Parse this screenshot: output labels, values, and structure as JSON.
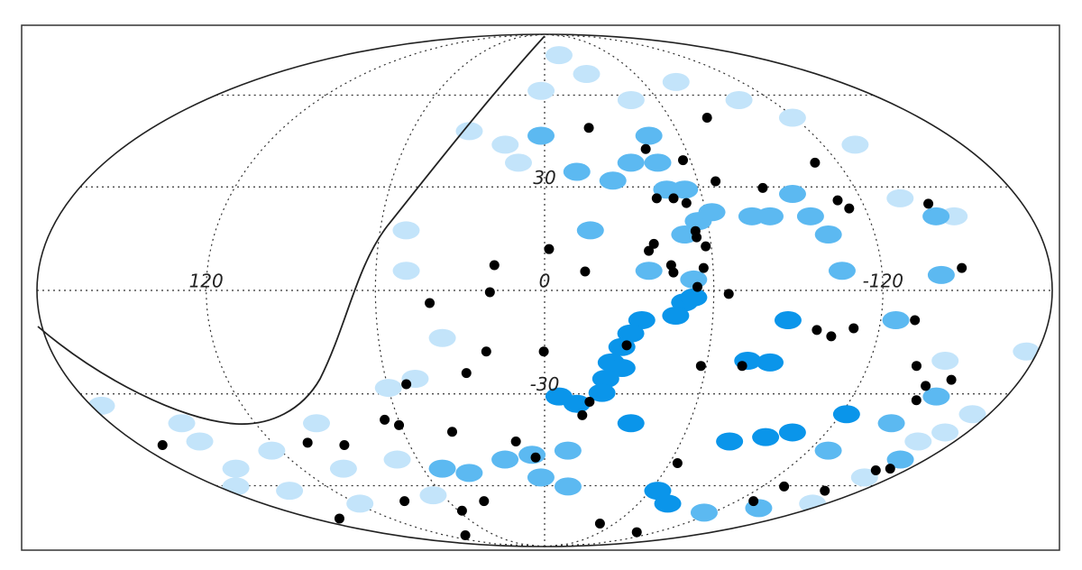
{
  "chart_data": {
    "type": "scatter",
    "projection": "mollweide",
    "xlim": [
      180,
      -180
    ],
    "ylim": [
      -90,
      90
    ],
    "xticks": [
      120,
      0,
      -120
    ],
    "yticks": [
      30,
      -30
    ],
    "xgrid": [
      -120,
      -60,
      0,
      60,
      120
    ],
    "ygrid": [
      -60,
      -30,
      0,
      30,
      60
    ],
    "grid": true,
    "series": [
      {
        "color": "#c3e4fa",
        "marker": "ellipse",
        "x": [
          2,
          -27.8,
          -45.8,
          -80.2,
          -103,
          -119,
          -133.9,
          -135.1,
          -151.7,
          -147.7,
          -173.3,
          -175.9,
          -12.9,
          17,
          10.7,
          34.1,
          50.5,
          49.2,
          59.9,
          48.9,
          36.9,
          94.6,
          124,
          152.4,
          151.4,
          150.5,
          176,
          170.2,
          145.2,
          118.2,
          99.3,
          69.6,
          65.8,
          -170.6,
          -164,
          -166,
          -171.5
        ],
        "y": [
          61.6,
          68.2,
          58.2,
          65,
          58.2,
          52,
          43.1,
          26.6,
          21.3,
          -20.2,
          -36.2,
          -17.5,
          76.5,
          43.1,
          37.4,
          47.5,
          17.2,
          5.6,
          -28.2,
          -25.5,
          -13.6,
          -39,
          -47.8,
          -53.9,
          -44.8,
          -39,
          -33.6,
          -60.3,
          -61.9,
          -66.9,
          -53.9,
          -50.8,
          -63.6,
          -41.9,
          -44.8,
          -57,
          -66.9
        ]
      },
      {
        "color": "#5cb9f1",
        "marker": "ellipse",
        "x": [
          -56.6,
          -62.3,
          -50.9,
          -54,
          -47.1,
          -35.3,
          -46.3,
          -26.8,
          -12.9,
          -16.7,
          -76.8,
          -83.5,
          -94.9,
          -98.5,
          -103.1,
          -105.8,
          5.8,
          18.7,
          -10.6,
          1.9,
          -12.9,
          38.1,
          50.5,
          -113.7,
          -144,
          -128.9,
          -143.8,
          -168,
          -152.6,
          -125.4,
          -140.9,
          -145,
          -37.1,
          -52.9,
          1.6,
          -46.4
        ],
        "y": [
          19.9,
          22.5,
          16,
          29.2,
          29.2,
          37.4,
          37.4,
          31.9,
          34.6,
          17.2,
          21.3,
          21.3,
          27.9,
          21.3,
          16,
          5.6,
          -49.2,
          -50.8,
          -47.8,
          -57,
          -60.3,
          -55.4,
          -53.9,
          -70.6,
          -68.7,
          -47.8,
          -39,
          -50.8,
          -30.8,
          -8.5,
          4.4,
          21.3,
          5.6,
          3.1,
          46,
          46
        ]
      },
      {
        "color": "#0a95ea",
        "marker": "ellipse",
        "x": [
          -34.7,
          -31,
          -28.1,
          -24.6,
          -28.8,
          -23.1,
          -22.2,
          -12.8,
          -5.6,
          -49.7,
          -52.9,
          -46.7,
          -83.3,
          -74.9,
          -86.9,
          -81.2,
          -95.6,
          -105.6,
          -122.3,
          -35.8,
          -64.4,
          -78.8
        ],
        "y": [
          -8.5,
          -12.3,
          -16.2,
          -20.7,
          -22.3,
          -25.5,
          -29.7,
          -33,
          -30.8,
          -3.4,
          -2,
          -7.2,
          -20.7,
          -20.2,
          -8.5,
          -44.8,
          -43.4,
          -41.9,
          -36.2,
          -39,
          -61.9,
          -66.9
        ]
      },
      {
        "color": "#000000",
        "marker": "dot",
        "x": [
          -20.3,
          -78,
          -43,
          -57,
          -110.6,
          -67,
          -42.6,
          -49,
          -53.5,
          -84.4,
          -111,
          -114,
          -144.6,
          -1.6,
          17.9,
          -14.4,
          -37.4,
          -39.4,
          -55,
          -55.1,
          -58,
          -45.1,
          -45.8,
          -56.6,
          -148.5,
          19.4,
          40.8,
          -54.2,
          -65.3,
          -132.2,
          -97.7,
          -103.3,
          -110.8,
          21.3,
          0.3,
          -29.8,
          29.3,
          -58,
          -73.3,
          -138,
          -153.9,
          -145.6,
          -145.9,
          52.7,
          -17.7,
          -15.3,
          65.7,
          60.7,
          39.3,
          170,
          104.5,
          89.1,
          12.6,
          4.2,
          -63.8,
          -165,
          -170.6,
          -132,
          -159.5,
          -130.3,
          87.4,
          37.8,
          57.4,
          160,
          -47.4,
          -99,
          95.9
        ],
        "y": [
          48.6,
          52,
          41.7,
          38.2,
          37.4,
          31.7,
          26.6,
          26.6,
          25.2,
          29.7,
          26,
          23.6,
          25,
          11.8,
          7.2,
          5.4,
          11.3,
          13.3,
          17,
          15.2,
          12.6,
          7.2,
          5.1,
          6.4,
          6.4,
          -0.5,
          -3.6,
          1,
          -1,
          -8.5,
          -11.3,
          -13.1,
          -10.8,
          -17.5,
          -17.5,
          -15.7,
          -23.8,
          -21.7,
          -21.7,
          -21.7,
          -25.8,
          -27.6,
          -31.9,
          -27.1,
          -32.4,
          -36.5,
          -37.9,
          -39.6,
          -41.7,
          -46,
          -45.2,
          -46,
          -44.8,
          -50.1,
          -52,
          -54.5,
          -53.9,
          -60.3,
          -61.9,
          -65.9,
          -65.9,
          -65.9,
          -69.8,
          -73.2,
          -75.5,
          -79.8,
          -81.5
        ]
      }
    ]
  }
}
